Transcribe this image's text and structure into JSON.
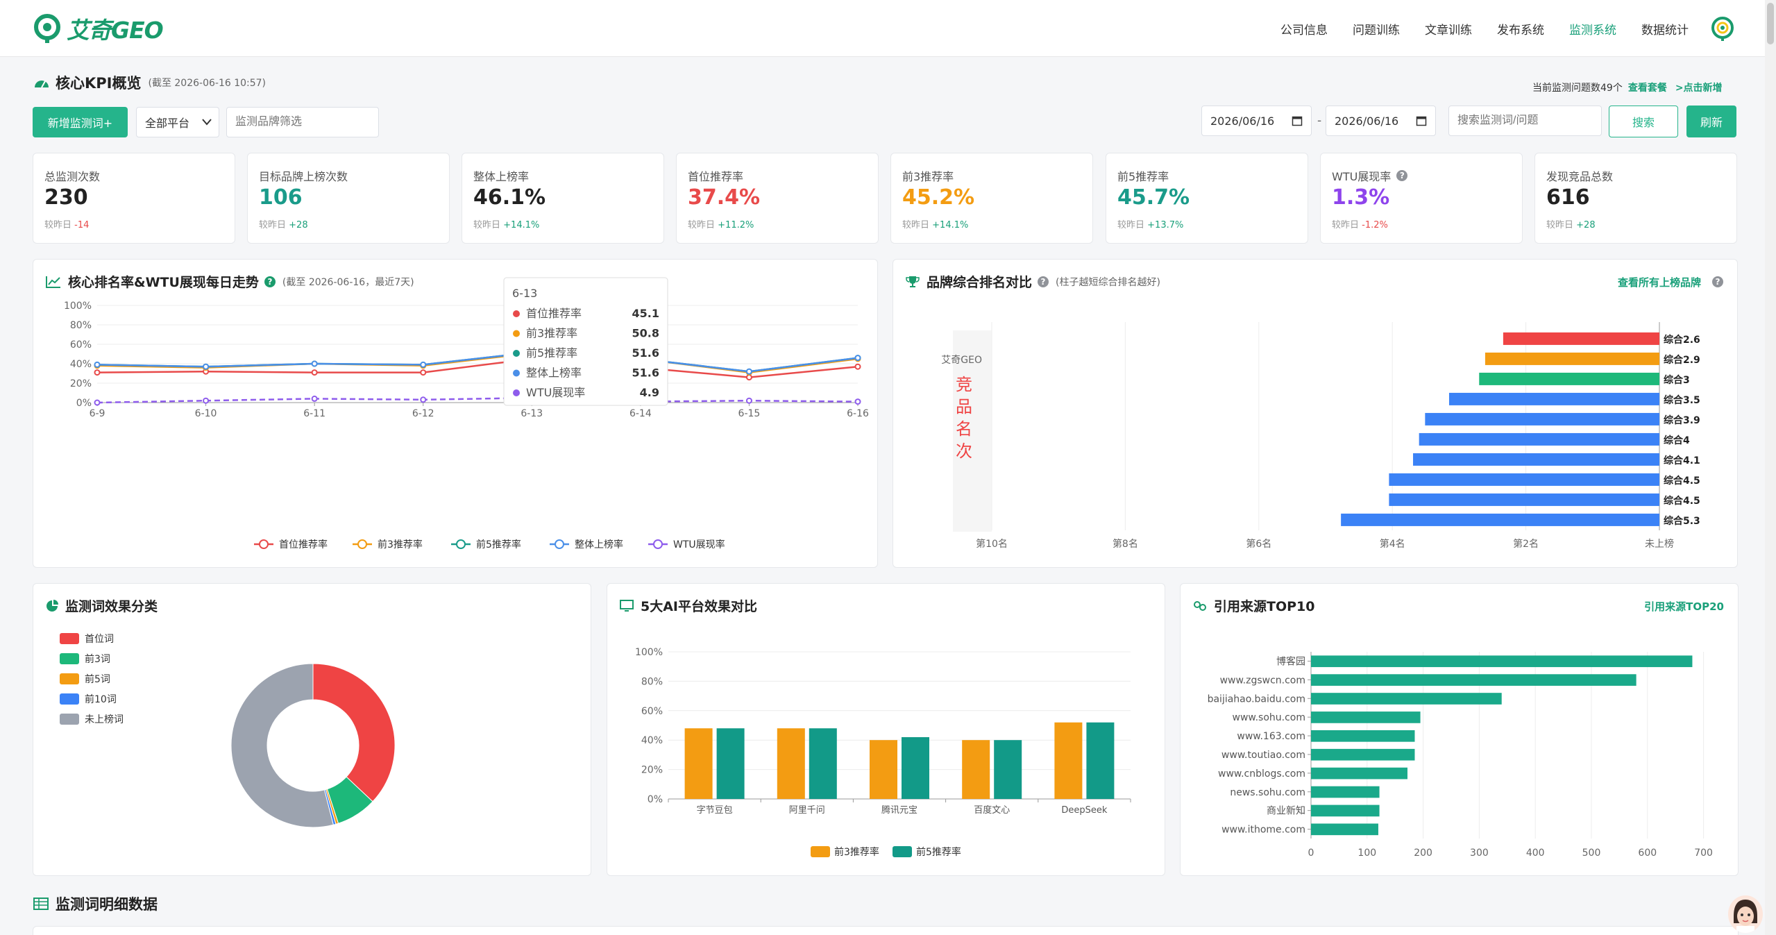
{
  "brand": {
    "name": "艾奇GEO",
    "accent": "#25b48b"
  },
  "nav": {
    "items": [
      "公司信息",
      "问题训练",
      "文章训练",
      "发布系统",
      "监测系统",
      "数据统计"
    ],
    "active_index": 4
  },
  "kpi_section": {
    "title": "核心KPI概览",
    "subtitle": "(截至 2026-06-16 10:57)",
    "current_count_text": "当前监测问题数49个",
    "view_plan": "查看套餐",
    "add_more": ">点击新增"
  },
  "toolbar": {
    "add_button": "新增监测词+",
    "platform_select": "全部平台",
    "brand_filter_placeholder": "监测品牌筛选",
    "date_start": "2026/06/16",
    "date_end": "2026/06/16",
    "date_sep": "-",
    "search_placeholder": "搜索监测词/问题",
    "search_button": "搜索",
    "refresh_button": "刷新"
  },
  "kpis": [
    {
      "label": "总监测次数",
      "value": "230",
      "delta_prefix": "较昨日",
      "delta": "-14",
      "color": "#222222",
      "delta_color": "#e84a4a",
      "help": false
    },
    {
      "label": "目标品牌上榜次数",
      "value": "106",
      "delta_prefix": "较昨日",
      "delta": "+28",
      "color": "#1a9b8a",
      "delta_color": "#1aa07a",
      "help": false
    },
    {
      "label": "整体上榜率",
      "value": "46.1%",
      "delta_prefix": "较昨日",
      "delta": "+14.1%",
      "color": "#222222",
      "delta_color": "#1aa07a",
      "help": false
    },
    {
      "label": "首位推荐率",
      "value": "37.4%",
      "delta_prefix": "较昨日",
      "delta": "+11.2%",
      "color": "#e84a4a",
      "delta_color": "#1aa07a",
      "help": false
    },
    {
      "label": "前3推荐率",
      "value": "45.2%",
      "delta_prefix": "较昨日",
      "delta": "+14.1%",
      "color": "#f39c12",
      "delta_color": "#1aa07a",
      "help": false
    },
    {
      "label": "前5推荐率",
      "value": "45.7%",
      "delta_prefix": "较昨日",
      "delta": "+13.7%",
      "color": "#1a9b8a",
      "delta_color": "#1aa07a",
      "help": false
    },
    {
      "label": "WTU展现率",
      "value": "1.3%",
      "delta_prefix": "较昨日",
      "delta": "-1.2%",
      "color": "#8e44ec",
      "delta_color": "#e84a4a",
      "help": true
    },
    {
      "label": "发现竞品总数",
      "value": "616",
      "delta_prefix": "较昨日",
      "delta": "+28",
      "color": "#222222",
      "delta_color": "#1aa07a",
      "help": false
    }
  ],
  "trend_panel": {
    "title": "核心排名率&WTU展现每日走势",
    "subtitle": "(截至 2026-06-16，最近7天)",
    "tooltip_date": "6-13"
  },
  "brand_panel": {
    "title": "品牌综合排名对比",
    "subtitle": "(柱子越短综合排名越好)",
    "link": "查看所有上榜品牌",
    "first_brand": "艾奇GEO",
    "overlay_text": "竞品名次"
  },
  "keyword_panel": {
    "title": "监测词效果分类"
  },
  "platform_panel": {
    "title": "5大AI平台效果对比"
  },
  "source_panel": {
    "title": "引用来源TOP10",
    "link": "引用来源TOP20"
  },
  "detail_section": {
    "title": "监测词明细数据"
  },
  "chart_data": [
    {
      "type": "line",
      "id": "trend",
      "x": [
        "6-9",
        "6-10",
        "6-11",
        "6-12",
        "6-13",
        "6-14",
        "6-15",
        "6-16"
      ],
      "ylim": [
        0,
        100
      ],
      "yticks": [
        "0%",
        "20%",
        "40%",
        "60%",
        "80%",
        "100%"
      ],
      "legend_position": "bottom",
      "grid": true,
      "series": [
        {
          "name": "首位推荐率",
          "color": "#e84a4a",
          "dashed": false,
          "values": [
            31,
            32,
            31,
            31,
            45.1,
            36,
            26,
            37
          ]
        },
        {
          "name": "前3推荐率",
          "color": "#f39c12",
          "dashed": false,
          "values": [
            38,
            36,
            40,
            38,
            50.8,
            45,
            31,
            45
          ]
        },
        {
          "name": "前5推荐率",
          "color": "#1a9b8a",
          "dashed": false,
          "values": [
            39,
            37,
            40,
            39,
            51.6,
            45,
            32,
            46
          ]
        },
        {
          "name": "整体上榜率",
          "color": "#4a8fe8",
          "dashed": false,
          "values": [
            39,
            37,
            40,
            39,
            51.6,
            45,
            32,
            46
          ]
        },
        {
          "name": "WTU展现率",
          "color": "#8e5cec",
          "dashed": true,
          "values": [
            0,
            2,
            4,
            3,
            4.9,
            1,
            2,
            1
          ]
        }
      ]
    },
    {
      "type": "bar",
      "id": "brand_rank",
      "orientation": "horizontal",
      "xticks": [
        "第10名",
        "第8名",
        "第6名",
        "第4名",
        "第2名",
        "未上榜"
      ],
      "bars": [
        {
          "label": "综合2.6",
          "color": "#ef4444",
          "value": 2.6
        },
        {
          "label": "综合2.9",
          "color": "#f39c12",
          "value": 2.9
        },
        {
          "label": "综合3",
          "color": "#1db87a",
          "value": 3
        },
        {
          "label": "综合3.5",
          "color": "#3b82f6",
          "value": 3.5
        },
        {
          "label": "综合3.9",
          "color": "#3b82f6",
          "value": 3.9
        },
        {
          "label": "综合4",
          "color": "#3b82f6",
          "value": 4
        },
        {
          "label": "综合4.1",
          "color": "#3b82f6",
          "value": 4.1
        },
        {
          "label": "综合4.5",
          "color": "#3b82f6",
          "value": 4.5
        },
        {
          "label": "综合4.5",
          "color": "#3b82f6",
          "value": 4.5
        },
        {
          "label": "综合5.3",
          "color": "#3b82f6",
          "value": 5.3
        }
      ]
    },
    {
      "type": "pie",
      "id": "keyword_effect",
      "legend_position": "left",
      "slices": [
        {
          "name": "首位词",
          "color": "#ef4444",
          "value": 37
        },
        {
          "name": "前3词",
          "color": "#1db87a",
          "value": 8
        },
        {
          "name": "前5词",
          "color": "#f39c12",
          "value": 0.5
        },
        {
          "name": "前10词",
          "color": "#3b82f6",
          "value": 0.5
        },
        {
          "name": "未上榜词",
          "color": "#9ca3af",
          "value": 54
        }
      ]
    },
    {
      "type": "bar",
      "id": "platform_compare",
      "categories": [
        "字节豆包",
        "阿里千问",
        "腾讯元宝",
        "百度文心",
        "DeepSeek"
      ],
      "ylim": [
        0,
        100
      ],
      "yticks": [
        "0%",
        "20%",
        "40%",
        "60%",
        "80%",
        "100%"
      ],
      "legend_position": "bottom",
      "series": [
        {
          "name": "前3推荐率",
          "color": "#f39c12",
          "values": [
            48,
            48,
            40,
            40,
            52
          ]
        },
        {
          "name": "前5推荐率",
          "color": "#129a88",
          "values": [
            48,
            48,
            42,
            40,
            52
          ]
        }
      ]
    },
    {
      "type": "bar",
      "id": "source_top10",
      "orientation": "horizontal",
      "xlim": [
        0,
        700
      ],
      "xticks": [
        "0",
        "100",
        "200",
        "300",
        "400",
        "500",
        "600",
        "700"
      ],
      "categories": [
        "博客园",
        "www.zgswcn.com",
        "baijiahao.baidu.com",
        "www.sohu.com",
        "www.163.com",
        "www.toutiao.com",
        "www.cnblogs.com",
        "news.sohu.com",
        "商业新知",
        "www.ithome.com"
      ],
      "values": [
        680,
        580,
        340,
        195,
        185,
        185,
        172,
        122,
        122,
        120
      ]
    }
  ]
}
